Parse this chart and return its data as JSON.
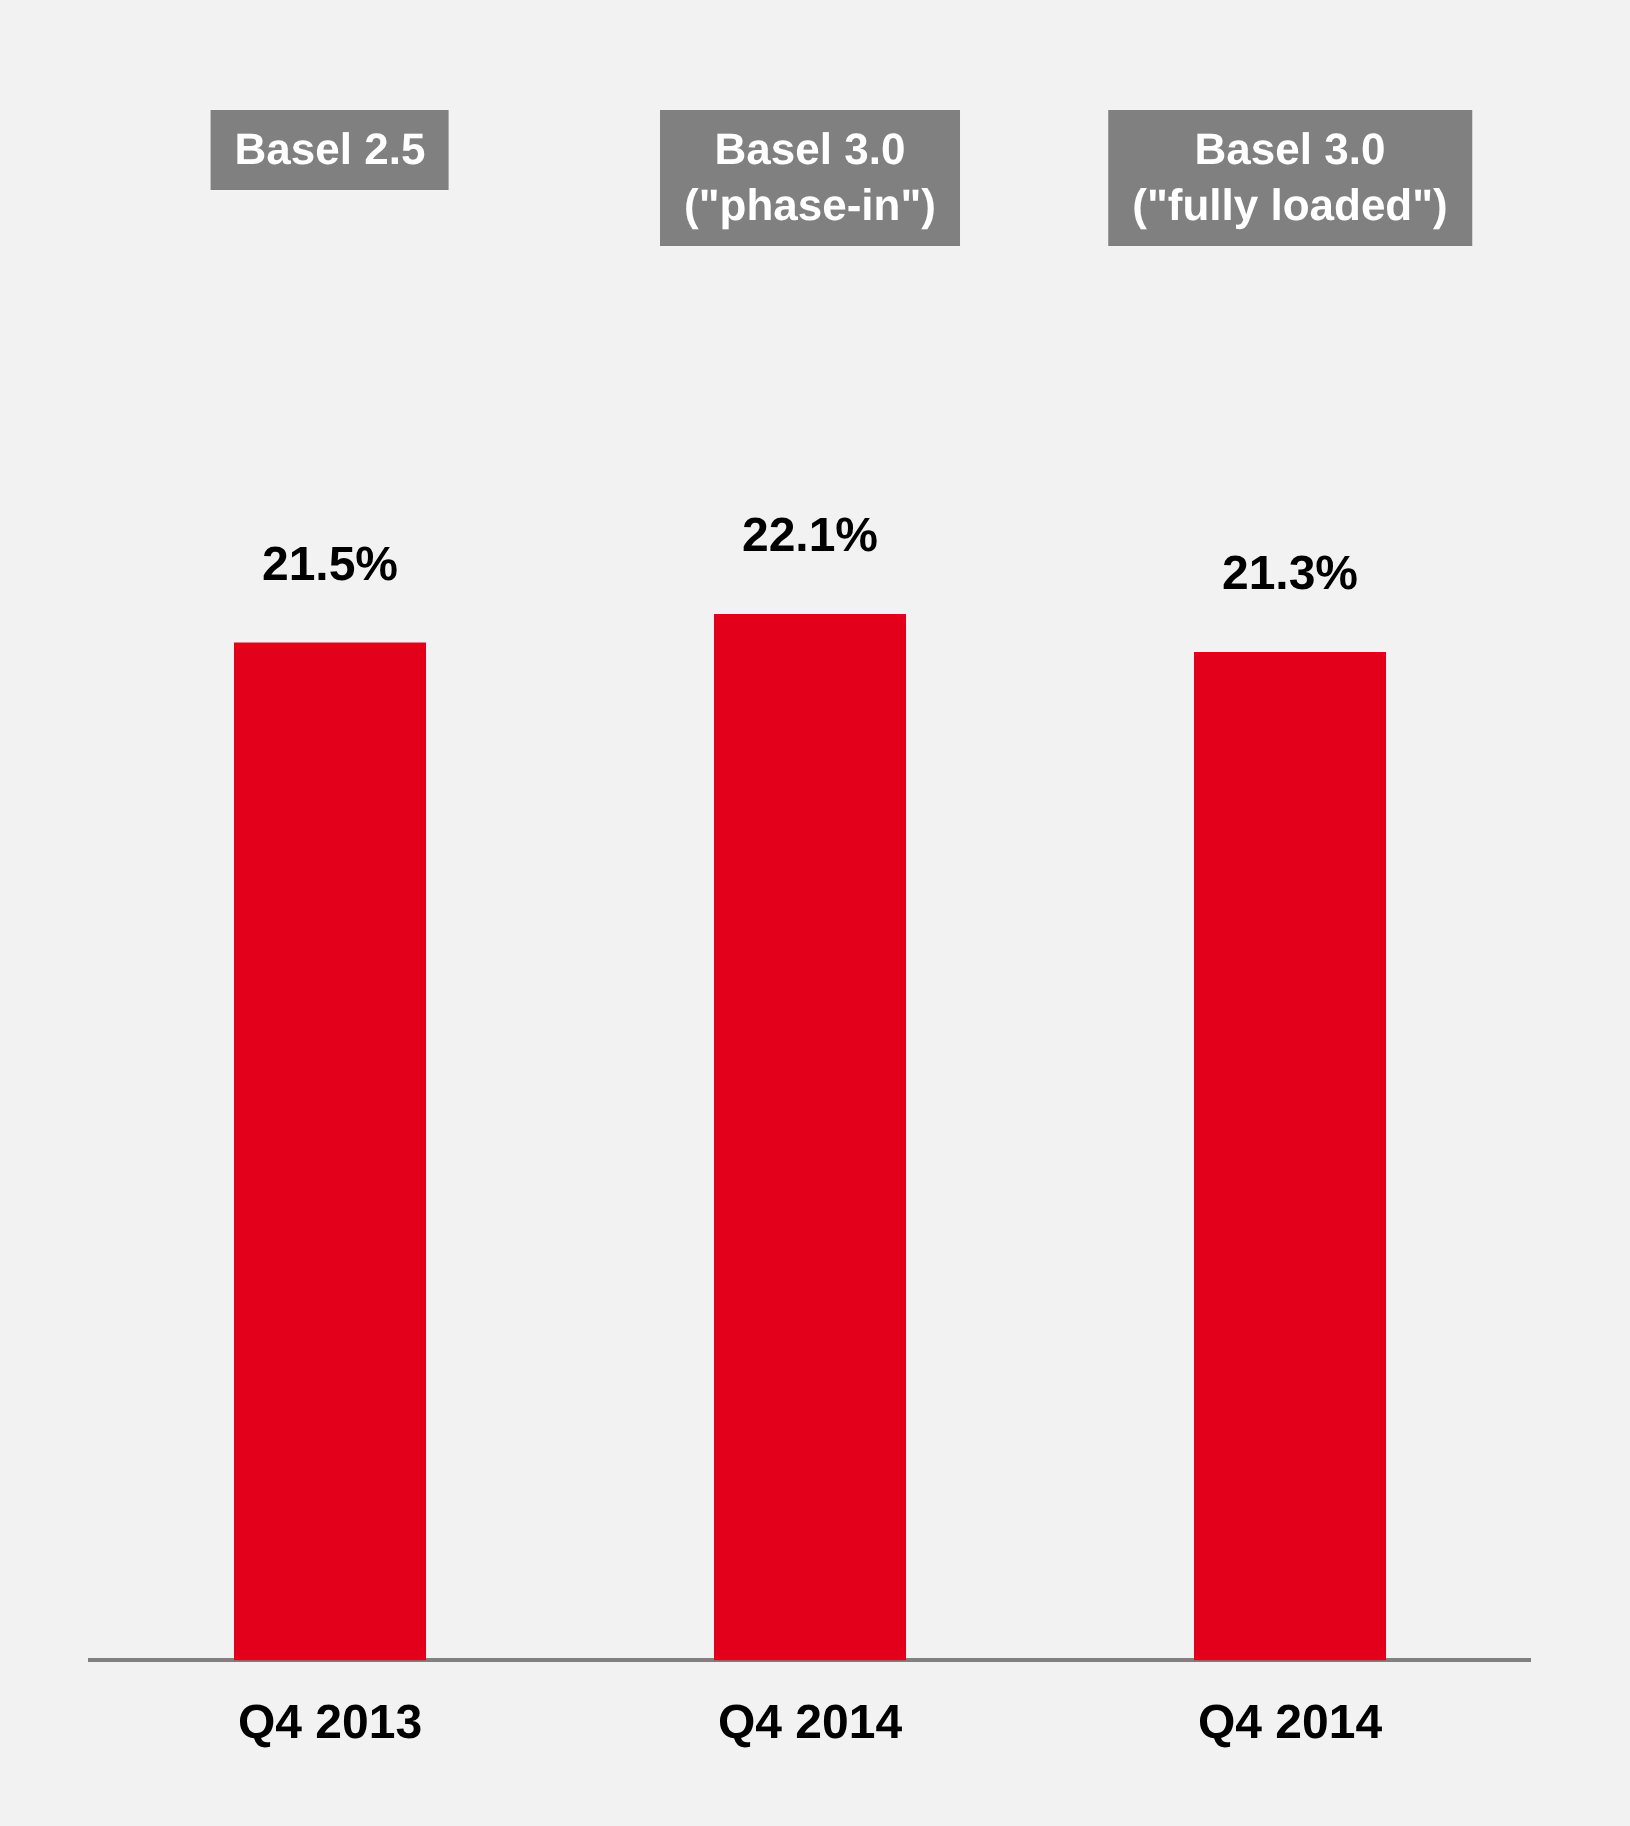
{
  "chart_data": {
    "type": "bar",
    "categories": [
      "Q4 2013",
      "Q4 2014",
      "Q4 2014"
    ],
    "values": [
      21.5,
      22.1,
      21.3
    ],
    "color": "#e2001a",
    "value_labels": [
      "21.5%",
      "22.1%",
      "21.3%"
    ],
    "tick_labels": "x",
    "grid": false,
    "legend": false,
    "annotations": [
      "Basel 2.5",
      "Basel 3.0\n(\"phase-in\")",
      "Basel 3.0\n(\"fully loaded\")"
    ]
  }
}
